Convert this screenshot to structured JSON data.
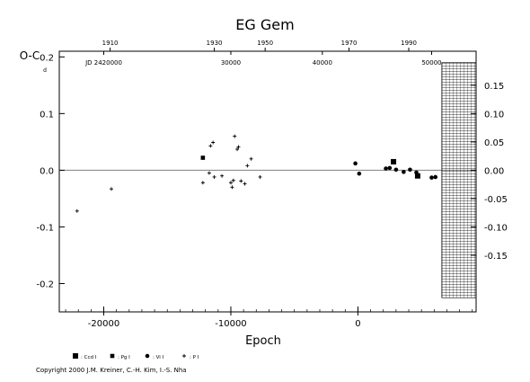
{
  "chart_data": {
    "type": "scatter",
    "title": "EG Gem",
    "ylabel": "O-C",
    "ylabel_unit": "d",
    "xlabel": "Epoch",
    "xlim": [
      -23500,
      9300
    ],
    "ylim": [
      -0.25,
      0.21
    ],
    "x_ticks": [
      {
        "value": -20000,
        "label": "-20000"
      },
      {
        "value": -10000,
        "label": "-10000"
      },
      {
        "value": 0,
        "label": "0"
      }
    ],
    "y_ticks_left": [
      {
        "value": 0.2,
        "label": "0.2"
      },
      {
        "value": 0.1,
        "label": "0.1"
      },
      {
        "value": 0.0,
        "label": "0.0"
      },
      {
        "value": -0.1,
        "label": "-0.1"
      },
      {
        "value": -0.2,
        "label": "-0.2"
      }
    ],
    "y_ticks_right": [
      {
        "value": 0.15,
        "label": "0.15"
      },
      {
        "value": 0.1,
        "label": "0.10"
      },
      {
        "value": 0.05,
        "label": "0.05"
      },
      {
        "value": 0.0,
        "label": "0.00"
      },
      {
        "value": -0.05,
        "label": "-0.05"
      },
      {
        "value": -0.1,
        "label": "-0.10"
      },
      {
        "value": -0.15,
        "label": "-0.15"
      }
    ],
    "top_year_ticks": [
      {
        "year": 1910,
        "label": "1910",
        "epoch": -19500
      },
      {
        "year": 1930,
        "label": "1930",
        "epoch": -11300
      },
      {
        "year": 1950,
        "label": "1950",
        "epoch": -7300
      },
      {
        "year": 1970,
        "label": "1970",
        "epoch": -700
      },
      {
        "year": 1990,
        "label": "1990",
        "epoch": 4000
      }
    ],
    "jd_labels": [
      {
        "label": "JD 2420000",
        "epoch": -20000
      },
      {
        "label": "30000",
        "epoch": -10000
      },
      {
        "label": "40000",
        "epoch": -2800
      },
      {
        "label": "50000",
        "epoch": 5800
      }
    ],
    "zero_line": 0,
    "hatched_future_region": {
      "x_from": 6600,
      "x_to": 9300,
      "y_from": -0.225,
      "y_to": 0.19
    },
    "series": [
      {
        "name": ": Ccd I",
        "marker": "square-large",
        "points": [
          [
            2800,
            0.015
          ],
          [
            4700,
            -0.01
          ]
        ]
      },
      {
        "name": ": Pg I",
        "marker": "square-small",
        "points": [
          [
            -12200,
            0.022
          ]
        ]
      },
      {
        "name": ": Vi I",
        "marker": "dot",
        "points": [
          [
            -200,
            0.012
          ],
          [
            100,
            -0.006
          ],
          [
            2200,
            0.003
          ],
          [
            2500,
            0.004
          ],
          [
            3000,
            0.001
          ],
          [
            3600,
            -0.003
          ],
          [
            4100,
            0.001
          ],
          [
            4600,
            -0.004
          ],
          [
            5800,
            -0.013
          ],
          [
            6100,
            -0.012
          ]
        ]
      },
      {
        "name": ": P I",
        "marker": "plus",
        "points": [
          [
            -22100,
            -0.072
          ],
          [
            -19400,
            -0.033
          ],
          [
            -12200,
            -0.022
          ],
          [
            -11700,
            -0.005
          ],
          [
            -11600,
            0.043
          ],
          [
            -11400,
            0.049
          ],
          [
            -11300,
            -0.012
          ],
          [
            -10700,
            -0.01
          ],
          [
            -10000,
            -0.022
          ],
          [
            -9900,
            -0.03
          ],
          [
            -9800,
            -0.018
          ],
          [
            -9700,
            0.06
          ],
          [
            -9500,
            0.037
          ],
          [
            -9400,
            0.041
          ],
          [
            -9200,
            -0.019
          ],
          [
            -8900,
            -0.024
          ],
          [
            -8700,
            0.008
          ],
          [
            -8400,
            0.02
          ],
          [
            -7700,
            -0.012
          ]
        ]
      }
    ],
    "legend_position": "bottom-left"
  },
  "footer": {
    "copyright": "Copyright 2000 J.M. Kreiner, C.-H. Kim, I.-S. Nha"
  },
  "colors": {
    "foreground": "#000000",
    "background": "#ffffff",
    "zero_line": "#808080"
  }
}
